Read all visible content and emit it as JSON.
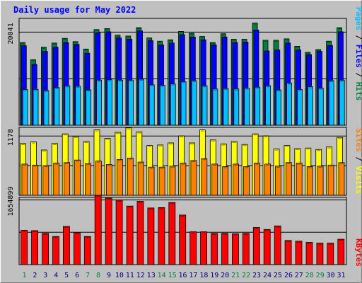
{
  "chart_data": {
    "type": "bar",
    "title": "Daily usage for May 2022",
    "categories": [
      "1",
      "2",
      "3",
      "4",
      "5",
      "6",
      "7",
      "8",
      "9",
      "10",
      "11",
      "12",
      "13",
      "14",
      "15",
      "16",
      "17",
      "18",
      "19",
      "20",
      "21",
      "22",
      "23",
      "24",
      "25",
      "26",
      "27",
      "28",
      "29",
      "30",
      "31"
    ],
    "weekend_days": [
      "1",
      "7",
      "8",
      "14",
      "15",
      "21",
      "22",
      "28",
      "29"
    ],
    "panels": [
      {
        "id": "hits",
        "tick_label": "20041",
        "tick_value": 20041,
        "ylim": [
          0,
          23000
        ],
        "series": [
          {
            "name": "Hits",
            "color": "#008040",
            "values": [
              17800,
              14100,
              16800,
              17700,
              18700,
              18000,
              16400,
              20600,
              20800,
              19400,
              19200,
              21000,
              18800,
              18100,
              18400,
              20200,
              19800,
              19100,
              17800,
              19700,
              18500,
              18500,
              22000,
              18300,
              18300,
              18600,
              17000,
              15700,
              16300,
              18100,
              21000
            ]
          },
          {
            "name": "Files",
            "color": "#0000ff",
            "values": [
              17100,
              13100,
              15900,
              16800,
              17800,
              17400,
              15500,
              19900,
              20100,
              18800,
              18500,
              20300,
              18200,
              17300,
              17700,
              19500,
              19000,
              18400,
              17300,
              19000,
              17800,
              17900,
              20500,
              16000,
              16200,
              17700,
              16200,
              15200,
              15900,
              17200,
              20100
            ]
          },
          {
            "name": "Pages",
            "color": "#00c0ff",
            "values": [
              7700,
              7700,
              7500,
              8100,
              8500,
              8400,
              7600,
              9700,
              9800,
              9700,
              9700,
              9900,
              8700,
              8600,
              8900,
              9400,
              9600,
              8500,
              7800,
              7900,
              7800,
              8000,
              8200,
              8500,
              7600,
              9100,
              7700,
              8300,
              8000,
              9600,
              9700
            ]
          }
        ]
      },
      {
        "id": "visits",
        "tick_label": "1178",
        "tick_value": 1178,
        "ylim": [
          0,
          1350
        ],
        "series": [
          {
            "name": "Visits",
            "color": "#ffff00",
            "values": [
              1030,
              1060,
              900,
              1030,
              1220,
              1170,
              1070,
              1300,
              1130,
              1250,
              1340,
              1260,
              990,
              1000,
              1040,
              1180,
              1040,
              1300,
              1100,
              1020,
              1070,
              1010,
              1220,
              1180,
              920,
              990,
              930,
              940,
              910,
              960,
              1150
            ]
          },
          {
            "name": "Sites",
            "color": "#ff8000",
            "values": [
              620,
              600,
              590,
              640,
              650,
              700,
              630,
              680,
              610,
              710,
              740,
              660,
              560,
              560,
              580,
              640,
              690,
              730,
              620,
              570,
              620,
              570,
              640,
              620,
              580,
              650,
              640,
              570,
              580,
              600,
              650
            ]
          }
        ]
      },
      {
        "id": "kbytes",
        "tick_label": "1654899",
        "tick_value": 1654899,
        "ylim": [
          0,
          1720000
        ],
        "series": [
          {
            "name": "KBytes",
            "color": "#ff0000",
            "values": [
              880000,
              870000,
              800000,
              720000,
              980000,
              820000,
              720000,
              1770000,
              1700000,
              1650000,
              1500000,
              1620000,
              1450000,
              1460000,
              1590000,
              1270000,
              840000,
              840000,
              800000,
              800000,
              790000,
              800000,
              950000,
              900000,
              990000,
              620000,
              600000,
              570000,
              550000,
              550000,
              650000
            ]
          }
        ]
      }
    ],
    "legend": [
      {
        "text": "Pages",
        "color": "#00c0ff"
      },
      {
        "text": " / ",
        "color": "#000000"
      },
      {
        "text": "Files",
        "color": "#0000ff"
      },
      {
        "text": " / ",
        "color": "#000000"
      },
      {
        "text": "Hits",
        "color": "#008040"
      },
      {
        "text": "Sites",
        "color": "#ff8000"
      },
      {
        "text": " / ",
        "color": "#000000"
      },
      {
        "text": "Visits",
        "color": "#ffff00"
      },
      {
        "text": "KBytes",
        "color": "#ff0000"
      }
    ],
    "grid": true,
    "colors": {
      "background": "#c0c0c0",
      "plot": "#c0c0c0",
      "frame": "#808080",
      "title": "#0000ff",
      "weekday_label": "#000080",
      "weekend_label": "#008040"
    }
  }
}
